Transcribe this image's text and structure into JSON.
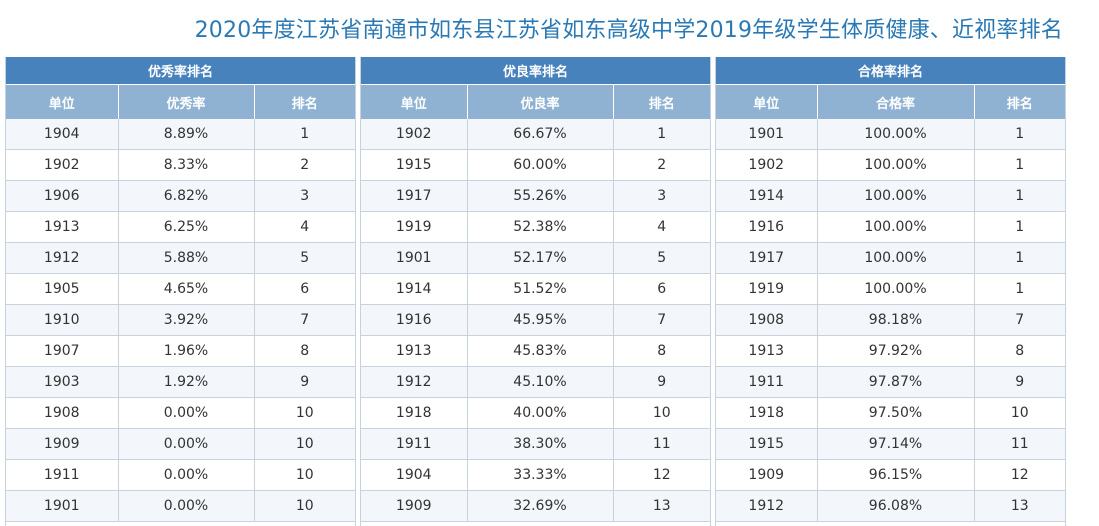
{
  "page": {
    "title": "2020年度江苏省南通市如东县江苏省如东高级中学2019年级学生体质健康、近视率排名"
  },
  "colors": {
    "title": "#2a79b4",
    "group_header": "#4782bd",
    "column_header": "#8fb2d3",
    "row_stripe": "#f3f6fa"
  },
  "tables": [
    {
      "title": "优秀率排名",
      "columns": [
        "单位",
        "优秀率",
        "排名"
      ],
      "rows": [
        [
          "1904",
          "8.89%",
          "1"
        ],
        [
          "1902",
          "8.33%",
          "2"
        ],
        [
          "1906",
          "6.82%",
          "3"
        ],
        [
          "1913",
          "6.25%",
          "4"
        ],
        [
          "1912",
          "5.88%",
          "5"
        ],
        [
          "1905",
          "4.65%",
          "6"
        ],
        [
          "1910",
          "3.92%",
          "7"
        ],
        [
          "1907",
          "1.96%",
          "8"
        ],
        [
          "1903",
          "1.92%",
          "9"
        ],
        [
          "1908",
          "0.00%",
          "10"
        ],
        [
          "1909",
          "0.00%",
          "10"
        ],
        [
          "1911",
          "0.00%",
          "10"
        ],
        [
          "1901",
          "0.00%",
          "10"
        ]
      ]
    },
    {
      "title": "优良率排名",
      "columns": [
        "单位",
        "优良率",
        "排名"
      ],
      "rows": [
        [
          "1902",
          "66.67%",
          "1"
        ],
        [
          "1915",
          "60.00%",
          "2"
        ],
        [
          "1917",
          "55.26%",
          "3"
        ],
        [
          "1919",
          "52.38%",
          "4"
        ],
        [
          "1901",
          "52.17%",
          "5"
        ],
        [
          "1914",
          "51.52%",
          "6"
        ],
        [
          "1916",
          "45.95%",
          "7"
        ],
        [
          "1913",
          "45.83%",
          "8"
        ],
        [
          "1912",
          "45.10%",
          "9"
        ],
        [
          "1918",
          "40.00%",
          "10"
        ],
        [
          "1911",
          "38.30%",
          "11"
        ],
        [
          "1904",
          "33.33%",
          "12"
        ],
        [
          "1909",
          "32.69%",
          "13"
        ]
      ]
    },
    {
      "title": "合格率排名",
      "columns": [
        "单位",
        "合格率",
        "排名"
      ],
      "rows": [
        [
          "1901",
          "100.00%",
          "1"
        ],
        [
          "1902",
          "100.00%",
          "1"
        ],
        [
          "1914",
          "100.00%",
          "1"
        ],
        [
          "1916",
          "100.00%",
          "1"
        ],
        [
          "1917",
          "100.00%",
          "1"
        ],
        [
          "1919",
          "100.00%",
          "1"
        ],
        [
          "1908",
          "98.18%",
          "7"
        ],
        [
          "1913",
          "97.92%",
          "8"
        ],
        [
          "1911",
          "97.87%",
          "9"
        ],
        [
          "1918",
          "97.50%",
          "10"
        ],
        [
          "1915",
          "97.14%",
          "11"
        ],
        [
          "1909",
          "96.15%",
          "12"
        ],
        [
          "1912",
          "96.08%",
          "13"
        ]
      ]
    }
  ]
}
